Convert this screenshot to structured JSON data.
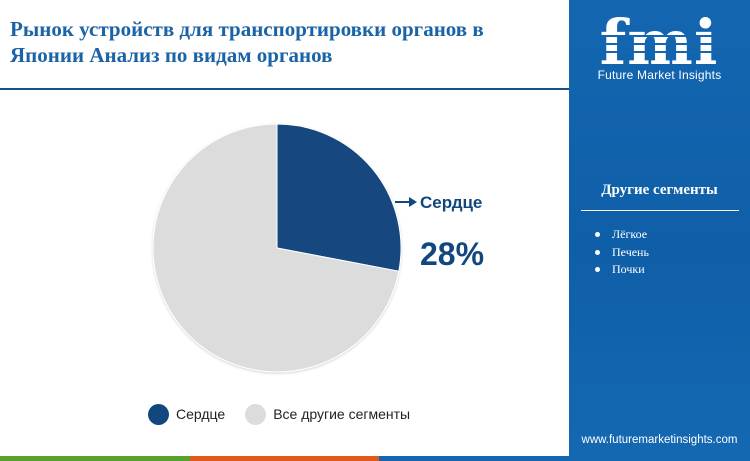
{
  "header": {
    "title": "Рынок устройств для транспортировки органов в Японии Анализ по видам органов"
  },
  "brand": {
    "logo_text": "fmi",
    "tagline": "Future Market Insights",
    "website": "www.futuremarketinsights.com"
  },
  "sidebar": {
    "title": "Другие сегменты",
    "items": [
      "Лёгкое",
      "Печень",
      "Почки"
    ]
  },
  "callout": {
    "label": "Сердце",
    "value": "28%"
  },
  "colors": {
    "heart": "#12477e",
    "others": "#dcdcdc",
    "accent": "#1466b0",
    "bottom_bar": [
      "#5aa02c",
      "#e05a1c",
      "#1466b0"
    ]
  },
  "chart_data": {
    "type": "pie",
    "title": "",
    "slices": [
      {
        "label": "Сердце",
        "value": 28,
        "color": "#12477e"
      },
      {
        "label": "Все другие сегменты",
        "value": 72,
        "color": "#dcdcdc"
      }
    ],
    "legend": {
      "placement": "bottom",
      "entries": [
        "Сердце",
        "Все другие сегменты"
      ]
    },
    "annotations": [
      "Сердце",
      "28%"
    ]
  }
}
